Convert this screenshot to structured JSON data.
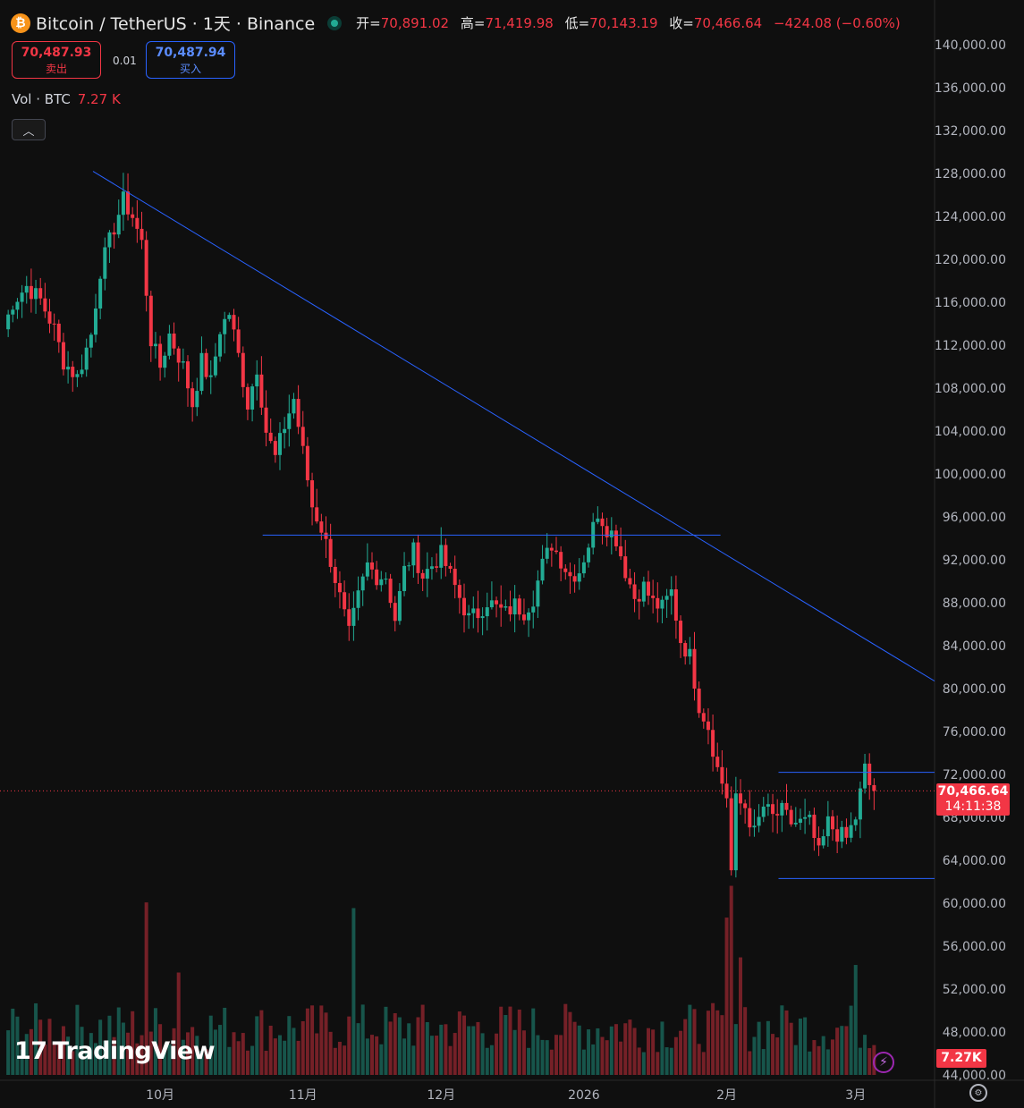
{
  "header": {
    "coin_symbol": "₿",
    "title": "Bitcoin / TetherUS · 1天 · Binance",
    "open_label": "开=",
    "open": "70,891.02",
    "high_label": "高=",
    "high": "71,419.98",
    "low_label": "低=",
    "low": "70,143.19",
    "close_label": "收=",
    "close": "70,466.64",
    "change": "−424.08 (−0.60%)"
  },
  "trade": {
    "sell_price": "70,487.93",
    "sell_label": "卖出",
    "spread": "0.01",
    "buy_price": "70,487.94",
    "buy_label": "买入"
  },
  "volume_legend": {
    "label": "Vol · BTC",
    "value": "7.27 K"
  },
  "collapse_icon": "chevron-up-icon",
  "branding": {
    "logo": "TradingView",
    "mark": "17"
  },
  "price_tag": {
    "price": "70,466.64",
    "countdown": "14:11:38"
  },
  "volume_tag": "7.27K",
  "colors": {
    "up": "#22ab94",
    "down": "#f23645",
    "trendline": "#2962ff",
    "background": "#0f0f0f"
  },
  "chart_data": {
    "type": "candlestick",
    "title": "",
    "ylim": [
      44000,
      140000
    ],
    "y_ticks": [
      "140,000.00",
      "136,000.00",
      "132,000.00",
      "128,000.00",
      "124,000.00",
      "120,000.00",
      "116,000.00",
      "112,000.00",
      "108,000.00",
      "104,000.00",
      "100,000.00",
      "96,000.00",
      "92,000.00",
      "88,000.00",
      "84,000.00",
      "80,000.00",
      "76,000.00",
      "72,000.00",
      "68,000.00",
      "64,000.00",
      "60,000.00",
      "56,000.00",
      "52,000.00",
      "48,000.00",
      "44,000.00"
    ],
    "x_labels": [
      {
        "label": "10月",
        "day": 34
      },
      {
        "label": "11月",
        "day": 65
      },
      {
        "label": "12月",
        "day": 95
      },
      {
        "label": "2026",
        "day": 126
      },
      {
        "label": "2月",
        "day": 157
      },
      {
        "label": "3月",
        "day": 185
      }
    ],
    "last_price": 70466.64,
    "price_path": [
      [
        0,
        113500
      ],
      [
        2,
        116000
      ],
      [
        5,
        117500
      ],
      [
        8,
        116200
      ],
      [
        11,
        113500
      ],
      [
        13,
        110500
      ],
      [
        16,
        109000
      ],
      [
        19,
        113000
      ],
      [
        21,
        119000
      ],
      [
        24,
        123000
      ],
      [
        26,
        125500
      ],
      [
        28,
        124000
      ],
      [
        30,
        121500
      ],
      [
        32,
        112500
      ],
      [
        34,
        110000
      ],
      [
        36,
        113000
      ],
      [
        39,
        110000
      ],
      [
        41,
        106500
      ],
      [
        43,
        110500
      ],
      [
        45,
        108500
      ],
      [
        47,
        113500
      ],
      [
        49,
        115000
      ],
      [
        51,
        111000
      ],
      [
        53,
        106500
      ],
      [
        55,
        110000
      ],
      [
        57,
        104000
      ],
      [
        59,
        101500
      ],
      [
        61,
        104500
      ],
      [
        63,
        107000
      ],
      [
        65,
        102000
      ],
      [
        67,
        97000
      ],
      [
        69,
        95000
      ],
      [
        71,
        92000
      ],
      [
        73,
        88500
      ],
      [
        75,
        85000
      ],
      [
        77,
        88500
      ],
      [
        79,
        91500
      ],
      [
        81,
        90500
      ],
      [
        83,
        90500
      ],
      [
        85,
        86500
      ],
      [
        87,
        91000
      ],
      [
        89,
        92800
      ],
      [
        91,
        90500
      ],
      [
        93,
        91500
      ],
      [
        95,
        92500
      ],
      [
        97,
        90500
      ],
      [
        99,
        88500
      ],
      [
        101,
        86500
      ],
      [
        103,
        87000
      ],
      [
        105,
        88200
      ],
      [
        107,
        87500
      ],
      [
        109,
        87000
      ],
      [
        111,
        87800
      ],
      [
        113,
        87200
      ],
      [
        115,
        88500
      ],
      [
        117,
        91500
      ],
      [
        119,
        93500
      ],
      [
        121,
        92000
      ],
      [
        123,
        90500
      ],
      [
        125,
        91000
      ],
      [
        127,
        93500
      ],
      [
        129,
        96500
      ],
      [
        131,
        95000
      ],
      [
        133,
        94000
      ],
      [
        135,
        91000
      ],
      [
        137,
        88500
      ],
      [
        139,
        89500
      ],
      [
        141,
        88000
      ],
      [
        143,
        87500
      ],
      [
        145,
        89000
      ],
      [
        147,
        84500
      ],
      [
        149,
        83000
      ],
      [
        151,
        78500
      ],
      [
        153,
        76500
      ],
      [
        155,
        72500
      ],
      [
        157,
        70000
      ],
      [
        158,
        63000
      ],
      [
        159,
        69500
      ],
      [
        161,
        69000
      ],
      [
        163,
        66500
      ],
      [
        165,
        69000
      ],
      [
        167,
        68000
      ],
      [
        169,
        68500
      ],
      [
        171,
        67500
      ],
      [
        173,
        67500
      ],
      [
        175,
        67500
      ],
      [
        177,
        64500
      ],
      [
        179,
        67500
      ],
      [
        181,
        66500
      ],
      [
        183,
        66000
      ],
      [
        185,
        68000
      ],
      [
        187,
        72500
      ],
      [
        188,
        71000
      ],
      [
        189,
        70466.64
      ]
    ],
    "trendline": [
      [
        0,
        128200
      ],
      [
        191,
        80700
      ]
    ],
    "levels": [
      {
        "price": 94300,
        "from_day": 38,
        "to_day": 144
      },
      {
        "price": 72200,
        "from_day": 150,
        "to_day": 191
      },
      {
        "price": 62300,
        "from_day": 150,
        "to_day": 191
      }
    ],
    "volume": {
      "ylim_k": [
        0,
        95
      ],
      "spikes": [
        [
          31,
          91
        ],
        [
          38,
          54
        ],
        [
          76,
          88
        ],
        [
          157,
          83
        ],
        [
          158,
          130
        ],
        [
          160,
          62
        ],
        [
          170,
          34
        ],
        [
          185,
          58
        ]
      ]
    }
  }
}
